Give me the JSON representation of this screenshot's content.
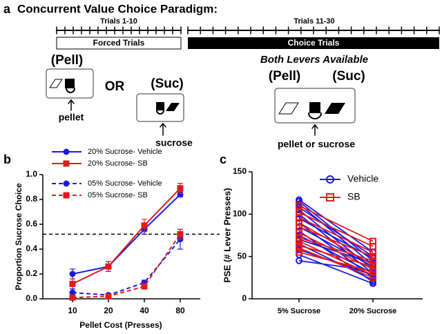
{
  "diagram": {
    "panel": "a",
    "title": "Concurrent Value Choice Paradigm:",
    "trials_first": "Trials 1-10",
    "trials_second": "Trials 11-30",
    "forced": "Forced Trials",
    "choice": "Choice Trials",
    "pell": "(Pell)",
    "or": "OR",
    "suc": "(Suc)",
    "pellet": "pellet",
    "sucrose": "sucrose",
    "both": "Both Levers Available",
    "pell2": "(Pell)",
    "suc2": "(Suc)",
    "either": "pellet or sucrose"
  },
  "chart_data": [
    {
      "type": "line",
      "panel": "b",
      "x_label": "Pellet Cost (Presses)",
      "y_label": "Proportion Sucrose Choice",
      "categories": [
        "10",
        "20",
        "40",
        "80"
      ],
      "ylim": [
        0,
        1.0
      ],
      "yticks": [
        {
          "value": 0,
          "label": "0.0"
        },
        0.2,
        0.4,
        0.6,
        0.8,
        {
          "value": 1.0,
          "label": "1.0"
        }
      ],
      "hline": 0.52,
      "legend": "top",
      "series": [
        {
          "name": "20% Sucrose- Vehicle",
          "color": "#1a1ae6",
          "marker": "circle",
          "dash": false,
          "values": [
            0.2,
            0.26,
            0.56,
            0.84
          ],
          "errors": [
            0.04,
            0.04,
            0.04,
            0.02
          ]
        },
        {
          "name": "20% Sucrose- SB",
          "color": "#e31a1c",
          "marker": "square",
          "dash": false,
          "values": [
            0.12,
            0.26,
            0.59,
            0.89
          ],
          "errors": [
            0.04,
            0.04,
            0.05,
            0.04
          ]
        },
        {
          "name": "05% Sucrose- Vehicle",
          "color": "#1a1ae6",
          "marker": "circle",
          "dash": true,
          "values": [
            0.05,
            0.03,
            0.13,
            0.48
          ],
          "errors": [
            0.03,
            0.01,
            0.02,
            0.08
          ]
        },
        {
          "name": "05% Sucrose- SB",
          "color": "#e31a1c",
          "marker": "square",
          "dash": true,
          "values": [
            0.01,
            0.02,
            0.1,
            0.52
          ],
          "errors": [
            0.01,
            0.01,
            0.02,
            0.04
          ]
        }
      ]
    },
    {
      "type": "slope",
      "panel": "c",
      "y_label": "PSE (# Lever Presses)",
      "categories": [
        "5% Sucrose",
        "20% Sucrose"
      ],
      "ylim": [
        0,
        150
      ],
      "yticks": [
        0,
        50,
        100,
        150
      ],
      "legend": "upper right",
      "series": [
        {
          "name": "Vehicle",
          "color": "#1a1ae6",
          "marker": "circle",
          "values": [
            [
              117,
              55
            ],
            [
              115,
              45
            ],
            [
              112,
              40
            ],
            [
              108,
              50
            ],
            [
              105,
              35
            ],
            [
              100,
              30
            ],
            [
              95,
              48
            ],
            [
              90,
              25
            ],
            [
              85,
              38
            ],
            [
              80,
              20
            ],
            [
              75,
              30
            ],
            [
              70,
              42
            ],
            [
              65,
              22
            ],
            [
              58,
              28
            ],
            [
              52,
              18
            ],
            [
              45,
              33
            ]
          ]
        },
        {
          "name": "SB",
          "color": "#e31a1c",
          "marker": "square",
          "values": [
            [
              110,
              68
            ],
            [
              102,
              62
            ],
            [
              96,
              55
            ],
            [
              90,
              40
            ],
            [
              85,
              50
            ],
            [
              78,
              35
            ],
            [
              72,
              45
            ],
            [
              68,
              28
            ],
            [
              63,
              38
            ],
            [
              60,
              25
            ],
            [
              55,
              32
            ]
          ]
        }
      ]
    }
  ]
}
